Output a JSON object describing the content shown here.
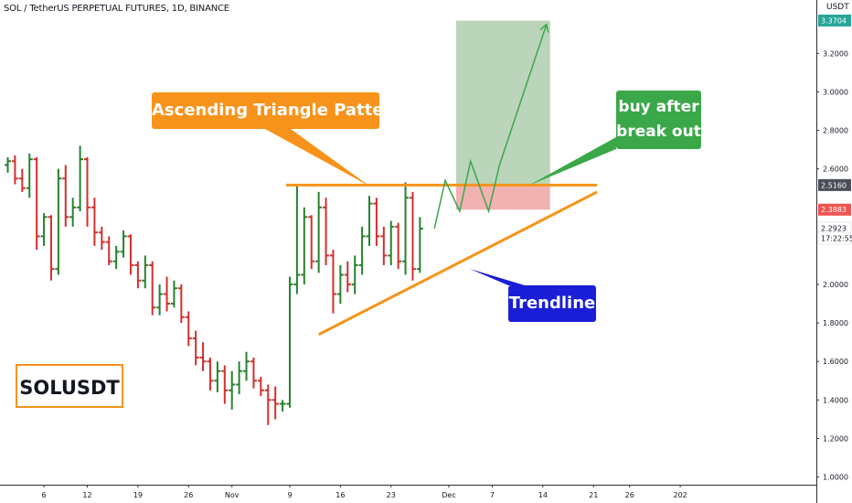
{
  "header": {
    "title": "SOL / TetherUS PERPETUAL FUTURES, 1D, BINANCE",
    "currency": "USDT"
  },
  "annotations": {
    "pattern_label": "Ascending Triangle Pattern",
    "buy_label_line1": "buy after",
    "buy_label_line2": "break out",
    "trendline_label": "Trendline",
    "symbol_label": "SOLUSDT"
  },
  "price_scale": {
    "price_boxes": [
      {
        "label": "3.3704",
        "price": 3.3704,
        "color": "#26a69a"
      },
      {
        "label": "2.5160",
        "price": 2.516,
        "color": "#4a4e58"
      },
      {
        "label": "2.3883",
        "price": 2.3883,
        "color": "#ef5350"
      },
      {
        "label": "2.2923",
        "price": 2.2923,
        "color": "#ffffff"
      },
      {
        "label": "17:22:55",
        "price": 2.24,
        "color": "#ffffff"
      }
    ]
  },
  "colors": {
    "up": "#26822f",
    "down": "#d32f2f",
    "orange": "#f7931a",
    "green": "#3aa849",
    "blue": "#1a1ed6"
  },
  "chart_data": {
    "type": "ohlc",
    "ylim": [
      0.96,
      3.42
    ],
    "yticks": [
      {
        "value": 3.2,
        "label": "3.2000"
      },
      {
        "value": 3.0,
        "label": "3.0000"
      },
      {
        "value": 2.8,
        "label": "2.8000"
      },
      {
        "value": 2.6,
        "label": "2.6000"
      },
      {
        "value": 2.0,
        "label": "2.0000"
      },
      {
        "value": 1.8,
        "label": "1.8000"
      },
      {
        "value": 1.6,
        "label": "1.6000"
      },
      {
        "value": 1.4,
        "label": "1.4000"
      },
      {
        "value": 1.2,
        "label": "1.2000"
      },
      {
        "value": 1.0,
        "label": "1.0000"
      }
    ],
    "xticks": [
      {
        "index": 5,
        "label": "6"
      },
      {
        "index": 11,
        "label": "12"
      },
      {
        "index": 18,
        "label": "19"
      },
      {
        "index": 25,
        "label": "26"
      },
      {
        "index": 31,
        "label": "Nov"
      },
      {
        "index": 39,
        "label": "9"
      },
      {
        "index": 46,
        "label": "16"
      },
      {
        "index": 53,
        "label": "23"
      },
      {
        "index": 61,
        "label": "Dec"
      },
      {
        "index": 67,
        "label": "7"
      },
      {
        "index": 74,
        "label": "14"
      },
      {
        "index": 81,
        "label": "21"
      },
      {
        "index": 86,
        "label": "26"
      },
      {
        "index": 93,
        "label": "202"
      }
    ],
    "candles": [
      [
        2.62,
        2.66,
        2.58,
        2.64
      ],
      [
        2.64,
        2.67,
        2.52,
        2.55
      ],
      [
        2.55,
        2.6,
        2.48,
        2.5
      ],
      [
        2.5,
        2.68,
        2.45,
        2.65
      ],
      [
        2.65,
        2.66,
        2.18,
        2.25
      ],
      [
        2.25,
        2.37,
        2.2,
        2.35
      ],
      [
        2.35,
        2.36,
        2.02,
        2.08
      ],
      [
        2.08,
        2.6,
        2.05,
        2.55
      ],
      [
        2.55,
        2.62,
        2.3,
        2.35
      ],
      [
        2.35,
        2.45,
        2.3,
        2.4
      ],
      [
        2.4,
        2.72,
        2.38,
        2.65
      ],
      [
        2.65,
        2.66,
        2.3,
        2.4
      ],
      [
        2.4,
        2.45,
        2.2,
        2.27
      ],
      [
        2.27,
        2.3,
        2.18,
        2.22
      ],
      [
        2.22,
        2.25,
        2.1,
        2.12
      ],
      [
        2.12,
        2.2,
        2.08,
        2.17
      ],
      [
        2.17,
        2.28,
        2.14,
        2.25
      ],
      [
        2.25,
        2.26,
        2.05,
        2.1
      ],
      [
        2.1,
        2.12,
        1.98,
        2.02
      ],
      [
        2.02,
        2.15,
        1.98,
        2.1
      ],
      [
        2.1,
        2.12,
        1.84,
        1.88
      ],
      [
        1.88,
        2.0,
        1.84,
        1.95
      ],
      [
        1.95,
        2.04,
        1.86,
        1.9
      ],
      [
        1.9,
        2.02,
        1.88,
        1.98
      ],
      [
        1.98,
        2.0,
        1.8,
        1.83
      ],
      [
        1.83,
        1.86,
        1.68,
        1.72
      ],
      [
        1.72,
        1.76,
        1.58,
        1.62
      ],
      [
        1.62,
        1.7,
        1.55,
        1.6
      ],
      [
        1.6,
        1.62,
        1.45,
        1.5
      ],
      [
        1.5,
        1.6,
        1.44,
        1.55
      ],
      [
        1.55,
        1.58,
        1.38,
        1.45
      ],
      [
        1.45,
        1.55,
        1.35,
        1.48
      ],
      [
        1.48,
        1.6,
        1.43,
        1.55
      ],
      [
        1.55,
        1.65,
        1.5,
        1.6
      ],
      [
        1.6,
        1.62,
        1.46,
        1.5
      ],
      [
        1.5,
        1.52,
        1.42,
        1.45
      ],
      [
        1.45,
        1.48,
        1.27,
        1.4
      ],
      [
        1.4,
        1.47,
        1.3,
        1.38
      ],
      [
        1.38,
        1.4,
        1.34,
        1.38
      ],
      [
        1.38,
        2.04,
        1.36,
        2.0
      ],
      [
        2.0,
        2.52,
        1.95,
        2.05
      ],
      [
        2.05,
        2.4,
        2.0,
        2.35
      ],
      [
        2.35,
        2.36,
        2.08,
        2.12
      ],
      [
        2.12,
        2.48,
        2.06,
        2.4
      ],
      [
        2.4,
        2.45,
        2.1,
        2.15
      ],
      [
        2.15,
        2.18,
        1.85,
        1.95
      ],
      [
        1.95,
        2.1,
        1.9,
        2.05
      ],
      [
        2.05,
        2.12,
        1.96,
        2.0
      ],
      [
        2.0,
        2.15,
        1.95,
        2.1
      ],
      [
        2.1,
        2.3,
        2.05,
        2.25
      ],
      [
        2.25,
        2.46,
        2.2,
        2.42
      ],
      [
        2.42,
        2.45,
        2.2,
        2.25
      ],
      [
        2.25,
        2.3,
        2.1,
        2.15
      ],
      [
        2.15,
        2.33,
        2.1,
        2.3
      ],
      [
        2.3,
        2.32,
        2.08,
        2.12
      ],
      [
        2.12,
        2.53,
        2.05,
        2.45
      ],
      [
        2.45,
        2.48,
        2.02,
        2.08
      ],
      [
        2.08,
        2.35,
        2.06,
        2.29
      ]
    ],
    "series": [
      {
        "name": "Ascending Triangle Pattern",
        "type": "resistance-line",
        "x": [
          38.5,
          81.5
        ],
        "y": [
          2.516,
          2.516
        ]
      },
      {
        "name": "Trendline",
        "type": "trendline",
        "x": [
          43,
          81.5
        ],
        "y": [
          1.74,
          2.48
        ]
      },
      {
        "name": "buy after break out",
        "type": "projection",
        "x": [
          59,
          60.5,
          62.5,
          64,
          66.5,
          68,
          74.5
        ],
        "y": [
          2.29,
          2.54,
          2.38,
          2.64,
          2.38,
          2.62,
          3.35
        ]
      }
    ],
    "target_zone": {
      "x": [
        62,
        75
      ],
      "y": [
        2.516,
        3.37
      ]
    },
    "stop_zone": {
      "x": [
        62,
        75
      ],
      "y": [
        2.3883,
        2.516
      ]
    }
  }
}
